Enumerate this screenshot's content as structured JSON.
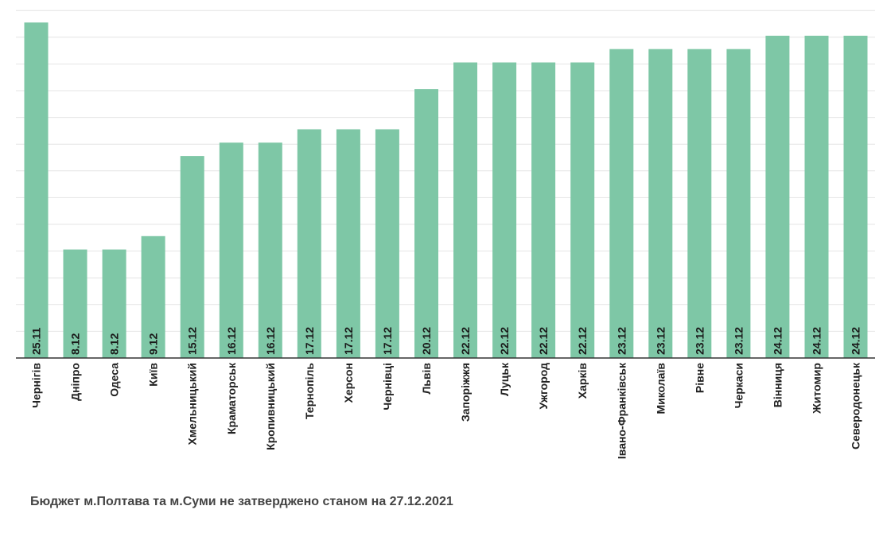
{
  "chart_data": {
    "type": "bar",
    "categories": [
      "Чернігів",
      "Дніпро",
      "Одеса",
      "Київ",
      "Хмельницький",
      "Краматорськ",
      "Кропивницький",
      "Тернопіль",
      "Херсон",
      "Чернівці",
      "Львів",
      "Запоріжжя",
      "Луцьк",
      "Ужгород",
      "Харків",
      "Івано-Франківськ",
      "Миколаїв",
      "Рівне",
      "Черкаси",
      "Вінниця",
      "Житомир",
      "Северодонецьк"
    ],
    "values": [
      25.11,
      8.12,
      8.12,
      9.12,
      15.12,
      16.12,
      16.12,
      17.12,
      17.12,
      17.12,
      20.12,
      22.12,
      22.12,
      22.12,
      22.12,
      23.12,
      23.12,
      23.12,
      23.12,
      24.12,
      24.12,
      24.12
    ],
    "data_labels": [
      "25.11",
      "8.12",
      "8.12",
      "9.12",
      "15.12",
      "16.12",
      "16.12",
      "17.12",
      "17.12",
      "17.12",
      "20.12",
      "22.12",
      "22.12",
      "22.12",
      "22.12",
      "23.12",
      "23.12",
      "23.12",
      "23.12",
      "24.12",
      "24.12",
      "24.12"
    ],
    "ylim": [
      0,
      26.2
    ],
    "grid": true,
    "bar_color": "#7ec7a6"
  },
  "footnote": "Бюджет м.Полтава та м.Суми не затверджено станом на 27.12.2021"
}
